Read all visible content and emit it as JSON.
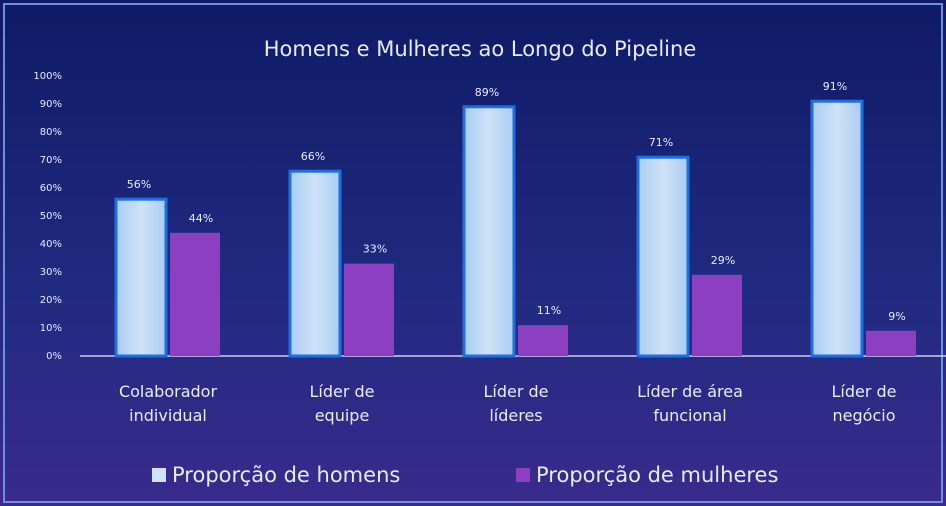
{
  "chart_data": {
    "type": "bar",
    "title": "Homens e Mulheres ao Longo do Pipeline",
    "categories": [
      "Colaborador individual",
      "Líder de equipe",
      "Líder de líderes",
      "Líder de área funcional",
      "Líder de negócio"
    ],
    "series": [
      {
        "name": "Proporção de homens",
        "color": "#cfe2f7",
        "values": [
          56,
          66,
          89,
          71,
          91
        ],
        "value_labels": [
          "56%",
          "66%",
          "89%",
          "71%",
          "91%"
        ]
      },
      {
        "name": "Proporção de mulheres",
        "color": "#8d3fc2",
        "values": [
          44,
          33,
          11,
          29,
          9
        ],
        "value_labels": [
          "44%",
          "33%",
          "11%",
          "29%",
          "9%"
        ]
      }
    ],
    "ylim": [
      0,
      100
    ],
    "yticks": [
      {
        "value": 0,
        "label": "0%"
      },
      {
        "value": 10,
        "label": "10%"
      },
      {
        "value": 20,
        "label": "20%"
      },
      {
        "value": 30,
        "label": "30%"
      },
      {
        "value": 40,
        "label": "40%"
      },
      {
        "value": 50,
        "label": "50%"
      },
      {
        "value": 60,
        "label": "60%"
      },
      {
        "value": 70,
        "label": "70%"
      },
      {
        "value": 80,
        "label": "80%"
      },
      {
        "value": 90,
        "label": "90%"
      },
      {
        "value": 100,
        "label": "100%"
      }
    ],
    "legend": "bottom"
  }
}
